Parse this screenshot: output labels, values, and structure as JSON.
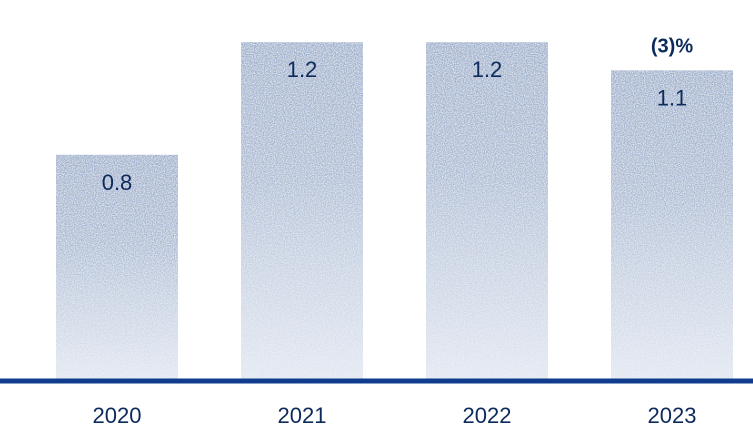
{
  "chart_data": {
    "type": "bar",
    "categories": [
      "2020",
      "2021",
      "2022",
      "2023"
    ],
    "values": [
      0.8,
      1.2,
      1.2,
      1.1
    ],
    "data_labels": [
      "0.8",
      "1.2",
      "1.2",
      "1.1"
    ],
    "annotations": [
      {
        "category": "2023",
        "text": "(3)%"
      }
    ],
    "ylim": [
      0,
      1.35
    ],
    "grid": false,
    "legend": "none"
  },
  "colors": {
    "bar_top": "#9aadcb",
    "bar_bottom": "#ffffff",
    "axis": "#0f3c8c",
    "text": "#0d2a5c"
  }
}
